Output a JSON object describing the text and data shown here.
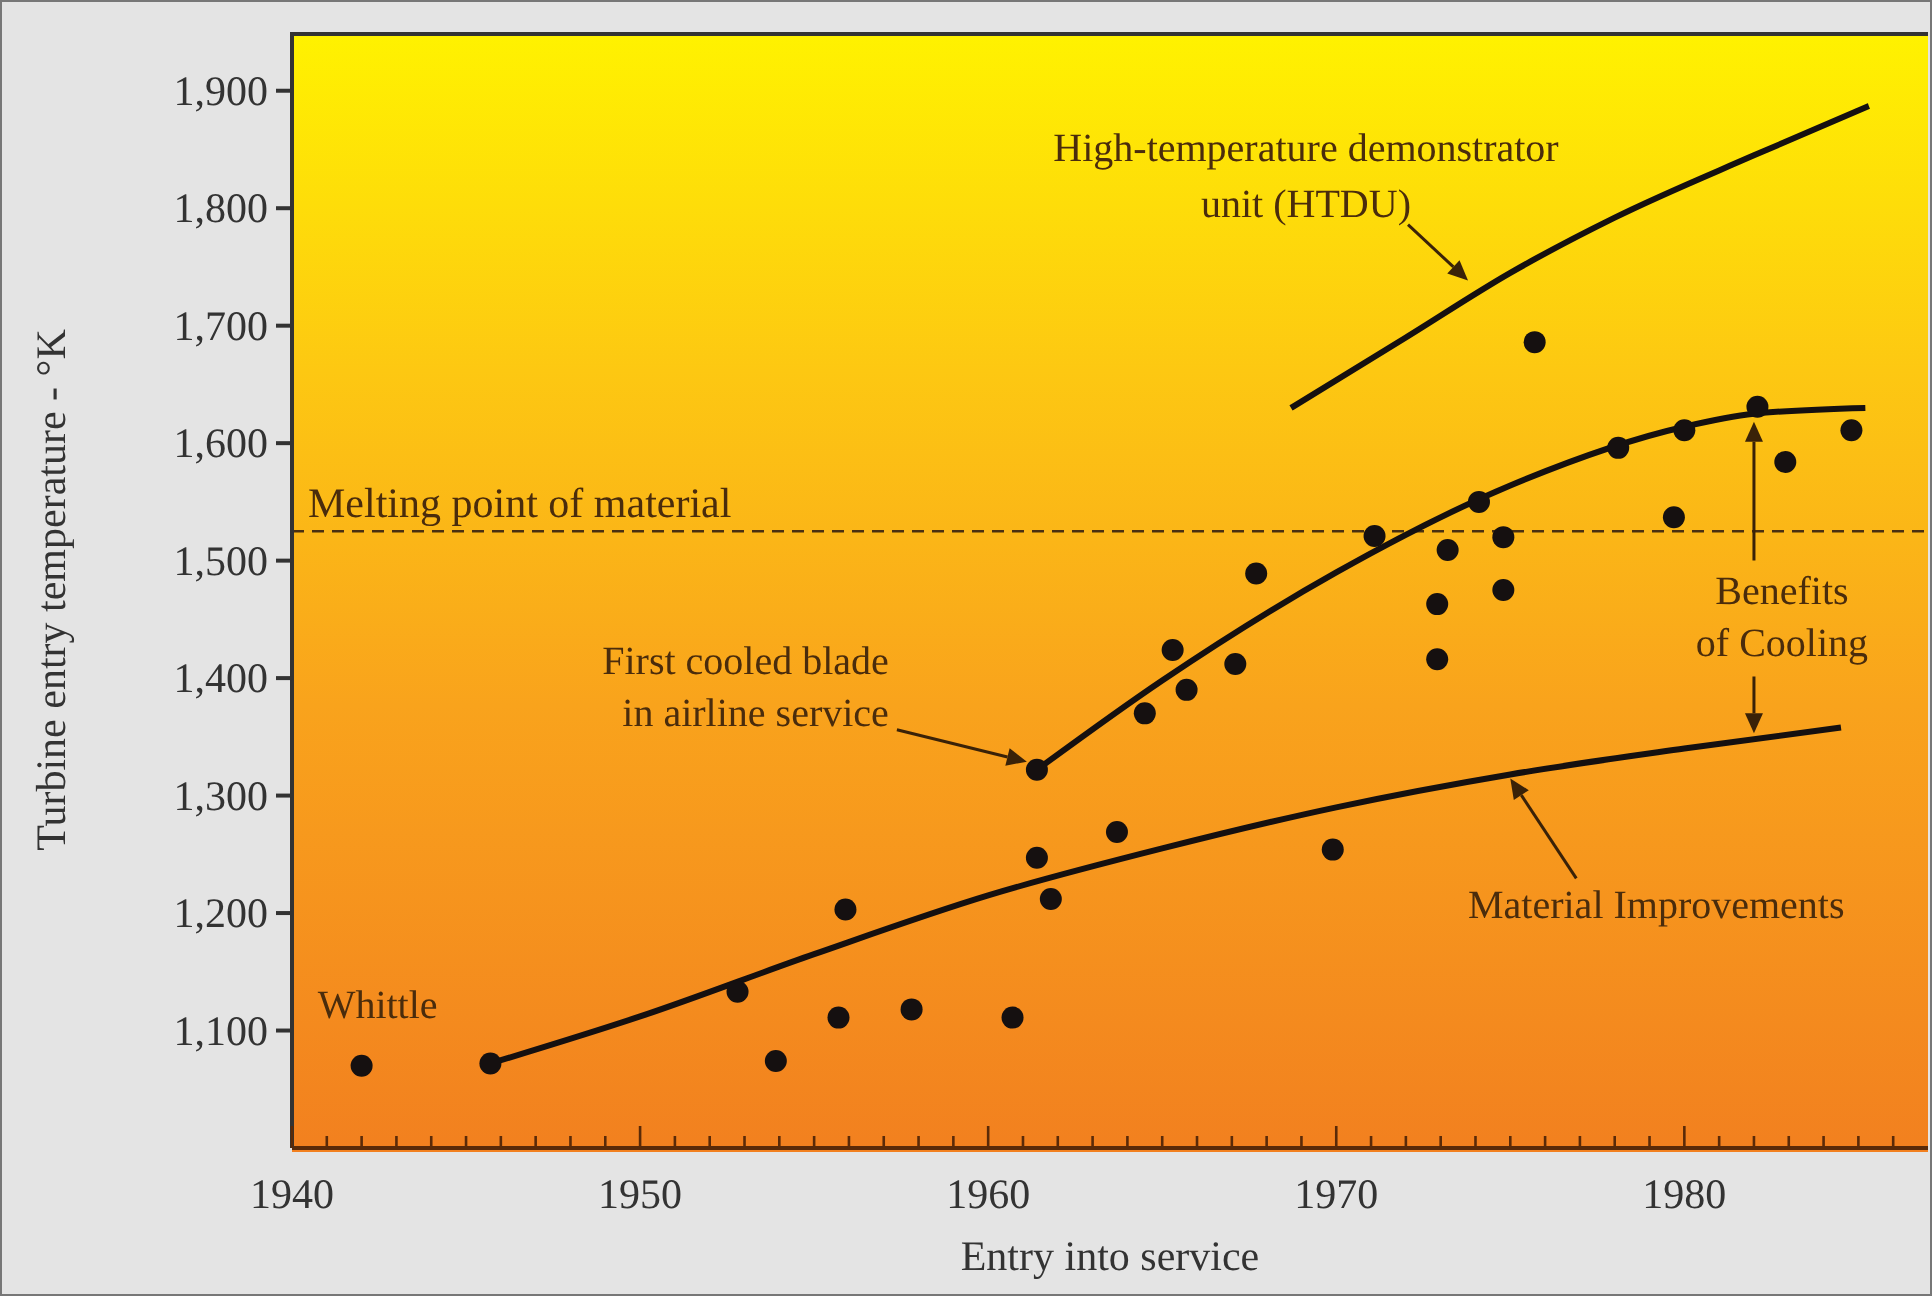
{
  "chart_data": {
    "type": "scatter",
    "xlabel": "Entry into service",
    "ylabel": "Turbine entry temperature - °K",
    "xlim": [
      1940,
      1987
    ],
    "ylim": [
      1000,
      1950
    ],
    "xticks": [
      1940,
      {
        "value": 1941,
        "label": null
      },
      {
        "value": 1942,
        "label": null
      },
      {
        "value": 1943,
        "label": null
      },
      {
        "value": 1944,
        "label": null
      },
      {
        "value": 1945,
        "label": null
      },
      {
        "value": 1946,
        "label": null
      },
      {
        "value": 1947,
        "label": null
      },
      {
        "value": 1948,
        "label": null
      },
      {
        "value": 1949,
        "label": null
      },
      1950,
      {
        "value": 1951,
        "label": null
      },
      {
        "value": 1952,
        "label": null
      },
      {
        "value": 1953,
        "label": null
      },
      {
        "value": 1954,
        "label": null
      },
      {
        "value": 1955,
        "label": null
      },
      {
        "value": 1956,
        "label": null
      },
      {
        "value": 1957,
        "label": null
      },
      {
        "value": 1958,
        "label": null
      },
      {
        "value": 1959,
        "label": null
      },
      1960,
      {
        "value": 1961,
        "label": null
      },
      {
        "value": 1962,
        "label": null
      },
      {
        "value": 1963,
        "label": null
      },
      {
        "value": 1964,
        "label": null
      },
      {
        "value": 1965,
        "label": null
      },
      {
        "value": 1966,
        "label": null
      },
      {
        "value": 1967,
        "label": null
      },
      {
        "value": 1968,
        "label": null
      },
      {
        "value": 1969,
        "label": null
      },
      1970,
      {
        "value": 1971,
        "label": null
      },
      {
        "value": 1972,
        "label": null
      },
      {
        "value": 1973,
        "label": null
      },
      {
        "value": 1974,
        "label": null
      },
      {
        "value": 1975,
        "label": null
      },
      {
        "value": 1976,
        "label": null
      },
      {
        "value": 1977,
        "label": null
      },
      {
        "value": 1978,
        "label": null
      },
      {
        "value": 1979,
        "label": null
      },
      1980,
      {
        "value": 1981,
        "label": null
      },
      {
        "value": 1982,
        "label": null
      },
      {
        "value": 1983,
        "label": null
      },
      {
        "value": 1984,
        "label": null
      },
      {
        "value": 1985,
        "label": null
      },
      {
        "value": 1986,
        "label": null
      }
    ],
    "yticks": [
      {
        "value": 1100,
        "label": "1,100"
      },
      {
        "value": 1200,
        "label": "1,200"
      },
      {
        "value": 1300,
        "label": "1,300"
      },
      {
        "value": 1400,
        "label": "1,400"
      },
      {
        "value": 1500,
        "label": "1,500"
      },
      {
        "value": 1600,
        "label": "1,600"
      },
      {
        "value": 1700,
        "label": "1,700"
      },
      {
        "value": 1800,
        "label": "1,800"
      },
      {
        "value": 1900,
        "label": "1,900"
      }
    ],
    "grid": false,
    "legend": false,
    "marker": "circle",
    "series": [
      {
        "color": "#151010",
        "x": [
          1942.0,
          1945.7,
          1952.8,
          1953.9,
          1955.7,
          1955.9,
          1957.8,
          1960.7,
          1961.4,
          1961.4,
          1961.8,
          1963.7,
          1964.5,
          1965.3,
          1965.7,
          1967.1,
          1967.7,
          1969.9,
          1971.1,
          1972.9,
          1972.9,
          1973.2,
          1974.1,
          1974.8,
          1974.8,
          1975.7,
          1978.1,
          1979.7,
          1980.0,
          1982.1,
          1982.9,
          1984.8
        ],
        "values": [
          1070,
          1072,
          1133,
          1074,
          1111,
          1203,
          1118,
          1111,
          1247,
          1322,
          1212,
          1269,
          1370,
          1424,
          1390,
          1412,
          1489,
          1254,
          1521,
          1416,
          1463,
          1509,
          1550,
          1475,
          1520,
          1686,
          1596,
          1537,
          1611,
          1631,
          1584,
          1611
        ]
      },
      {
        "type": "line",
        "color": "#151010",
        "marker": "none",
        "x": [
          1945.7,
          1950,
          1955,
          1960,
          1965,
          1970,
          1975,
          1980,
          1984.5
        ],
        "values": [
          1072,
          1112,
          1165,
          1215,
          1255,
          1290,
          1318,
          1340,
          1358
        ]
      },
      {
        "type": "line",
        "color": "#151010",
        "marker": "none",
        "x": [
          1961.4,
          1965,
          1970,
          1975,
          1980,
          1982,
          1985.2
        ],
        "values": [
          1322,
          1398,
          1490,
          1564,
          1614,
          1625,
          1630
        ]
      },
      {
        "type": "line",
        "color": "#151010",
        "marker": "none",
        "x": [
          1968.7,
          1972,
          1975,
          1978,
          1982,
          1985.3
        ],
        "values": [
          1630,
          1690,
          1745,
          1792,
          1845,
          1887
        ]
      }
    ],
    "ref_lines": [
      {
        "axis": "y",
        "value": 1525,
        "label": "Melting point of material",
        "color": "#4a3010",
        "line_style": "dashed"
      }
    ],
    "annotations": [
      {
        "text": "Whittle",
        "x": 1942.0,
        "y": 1070
      },
      "First cooled blade\nin airline service",
      "Material Improvements",
      "Benefits\nof Cooling",
      {
        "text": "High-temperature demonstrator\nunit (HTDU)",
        "x": 1973.9,
        "y": 1735
      }
    ]
  }
}
